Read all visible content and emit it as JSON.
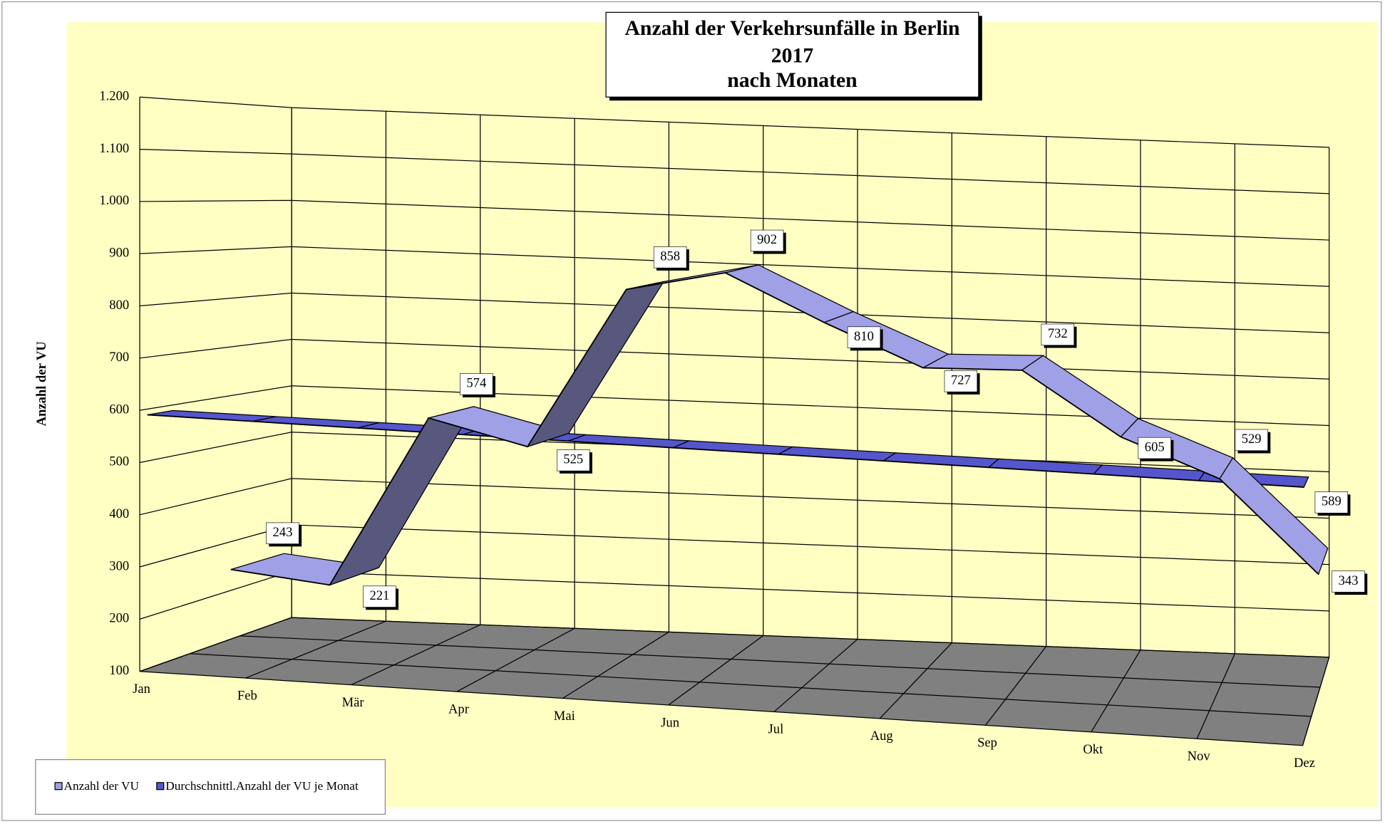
{
  "chart_data": {
    "type": "line3d",
    "title": [
      "Anzahl der Verkehrsunfälle in Berlin",
      "2017",
      "nach Monaten"
    ],
    "y_label": "Anzahl der VU",
    "categories": [
      "Jan",
      "Feb",
      "Mär",
      "Apr",
      "Mai",
      "Jun",
      "Jul",
      "Aug",
      "Sep",
      "Okt",
      "Nov",
      "Dez"
    ],
    "series": [
      {
        "name": "Anzahl der VU",
        "color": "#a0a0e6",
        "values": [
          243,
          221,
          574,
          525,
          858,
          902,
          810,
          727,
          732,
          605,
          529,
          343
        ]
      },
      {
        "name": "Durchschnittl.Anzahl der VU je Monat",
        "color": "#5555cc",
        "values": [
          589,
          589,
          589,
          589,
          589,
          589,
          589,
          589,
          589,
          589,
          589,
          589
        ]
      }
    ],
    "ylim": [
      100,
      1200
    ],
    "yticks": [
      100,
      200,
      300,
      400,
      500,
      600,
      700,
      800,
      900,
      {
        "value": 1000,
        "label": "1.000"
      },
      {
        "value": 1100,
        "label": "1.100"
      },
      {
        "value": 1200,
        "label": "1.200"
      }
    ],
    "grid": true
  }
}
